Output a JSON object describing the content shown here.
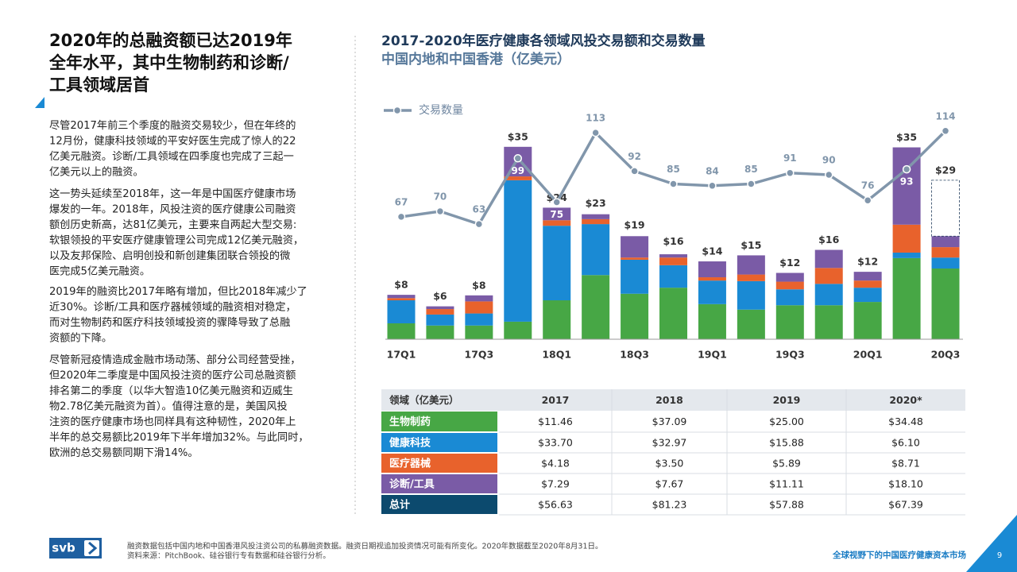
{
  "heading": [
    "2020年的总融资额已达2019年",
    "全年水平，其中生物制药和诊断/",
    "工具领域居首"
  ],
  "paragraphs": [
    [
      "尽管2017年前三个季度的融资交易较少，但在年终的",
      "12月份，健康科技领域的平安好医生完成了惊人的22",
      "亿美元融资。诊断/工具领域在四季度也完成了三起一",
      "亿美元以上的融资。"
    ],
    [
      "这一势头延续至2018年，这一年是中国医疗健康市场",
      "爆发的一年。2018年，风投注资的医疗健康公司融资",
      "额创历史新高，达81亿美元，主要来自两起大型交易:",
      "软银领投的平安医疗健康管理公司完成12亿美元融资，",
      "以及友邦保险、启明创投和新创建集团联合领投的微",
      "医完成5亿美元融资。"
    ],
    [
      "2019年的融资比2017年略有增加，但比2018年减少了",
      "近30%。诊断/工具和医疗器械领域的融资相对稳定，",
      "而对生物制药和医疗科技领域投资的骤降导致了总融",
      "资额的下降。"
    ],
    [
      "尽管新冠疫情造成金融市场动荡、部分公司经营受挫，",
      "但2020年二季度是中国风投注资的医疗公司总融资额",
      "排名第二的季度（以华大智造10亿美元融资和迈威生",
      "物2.78亿美元融资为首）。值得注意的是，美国风投",
      "注资的医疗健康市场也同样具有这种韧性，2020年上",
      "半年的总交易额比2019年下半年增加32%。与此同时，",
      "欧洲的总交易额同期下滑14%。"
    ]
  ],
  "chart_data": {
    "type": "bar",
    "stacked": true,
    "title": "2017-2020年医疗健康各领域风投交易额和交易数量",
    "subtitle": "中国内地和中国香港（亿美元）",
    "categories": [
      "17Q1",
      null,
      "17Q3",
      null,
      "18Q1",
      null,
      "18Q3",
      null,
      "19Q1",
      null,
      "19Q3",
      null,
      "20Q1",
      null,
      "20Q3"
    ],
    "series": [
      {
        "color": "#47a745",
        "values": [
          2.9,
          2.5,
          2.5,
          3.2,
          7.1,
          11.7,
          8.3,
          9.4,
          6.4,
          5.4,
          6.2,
          6.2,
          6.8,
          14.8,
          12.9
        ]
      },
      {
        "color": "#1a8ad4",
        "values": [
          4.2,
          2.0,
          2.2,
          25.8,
          13.6,
          9.3,
          6.2,
          4.1,
          4.3,
          5.2,
          2.9,
          3.9,
          2.6,
          1.0,
          2.0
        ]
      },
      {
        "color": "#e8622c",
        "values": [
          0.4,
          1.0,
          2.2,
          0.7,
          1.0,
          0.9,
          0.4,
          1.4,
          0.6,
          1.2,
          1.4,
          2.9,
          1.3,
          5.1,
          1.9
        ]
      },
      {
        "color": "#7a5ba6",
        "values": [
          0.6,
          0.5,
          1.1,
          5.4,
          2.3,
          0.9,
          3.9,
          0.6,
          2.9,
          3.5,
          1.6,
          3.3,
          1.6,
          14.1,
          2.0
        ]
      },
      {
        "name": "交易数量",
        "type": "line",
        "axis": "y2",
        "color": "#8196ab",
        "values": [
          67,
          70,
          63,
          99,
          75,
          113,
          92,
          85,
          84,
          85,
          91,
          90,
          76,
          93,
          114
        ]
      }
    ],
    "total": {
      "values": [
        8,
        6,
        8,
        35,
        24,
        23,
        19,
        16,
        14,
        15,
        12,
        16,
        12,
        35,
        29
      ],
      "value_labels": [
        "$8",
        "$6",
        "$8",
        "$35",
        "$24",
        "$23",
        "$19",
        "$16",
        "$14",
        "$15",
        "$12",
        "$16",
        "$12",
        "$35",
        "$29"
      ]
    },
    "ylim": [
      0,
      40
    ],
    "y2lim": [
      0,
      120
    ],
    "legend": "top-left"
  },
  "table": {
    "header": [
      "领域（亿美元）",
      "2017",
      "2018",
      "2019",
      "2020*"
    ],
    "rows": [
      {
        "label": "生物制药",
        "color": "#47a745",
        "cells": [
          "$11.46",
          "$37.09",
          "$25.00",
          "$34.48"
        ]
      },
      {
        "label": "健康科技",
        "color": "#1a8ad4",
        "cells": [
          "$33.70",
          "$32.97",
          "$15.88",
          "$6.10"
        ]
      },
      {
        "label": "医疗器械",
        "color": "#e8622c",
        "cells": [
          "$4.18",
          "$3.50",
          "$5.89",
          "$8.71"
        ]
      },
      {
        "label": "诊断/工具",
        "color": "#7a5ba6",
        "cells": [
          "$7.29",
          "$7.67",
          "$11.11",
          "$18.10"
        ]
      },
      {
        "label": "总计",
        "color": "#0c4a6e",
        "cells": [
          "$56.63",
          "$81.23",
          "$57.88",
          "$67.39"
        ]
      }
    ]
  },
  "footer": {
    "logo": "svb",
    "notes": [
      "融资数据包括中国内地和中国香港风投注资公司的私募融资数据。融资日期视追加投资情况可能有所变化。2020年数据截至2020年8月31日。",
      "资料来源：PitchBook、硅谷银行专有数据和硅谷银行分析。"
    ],
    "report_title": "全球视野下的中国医疗健康资本市场",
    "page": 9
  }
}
